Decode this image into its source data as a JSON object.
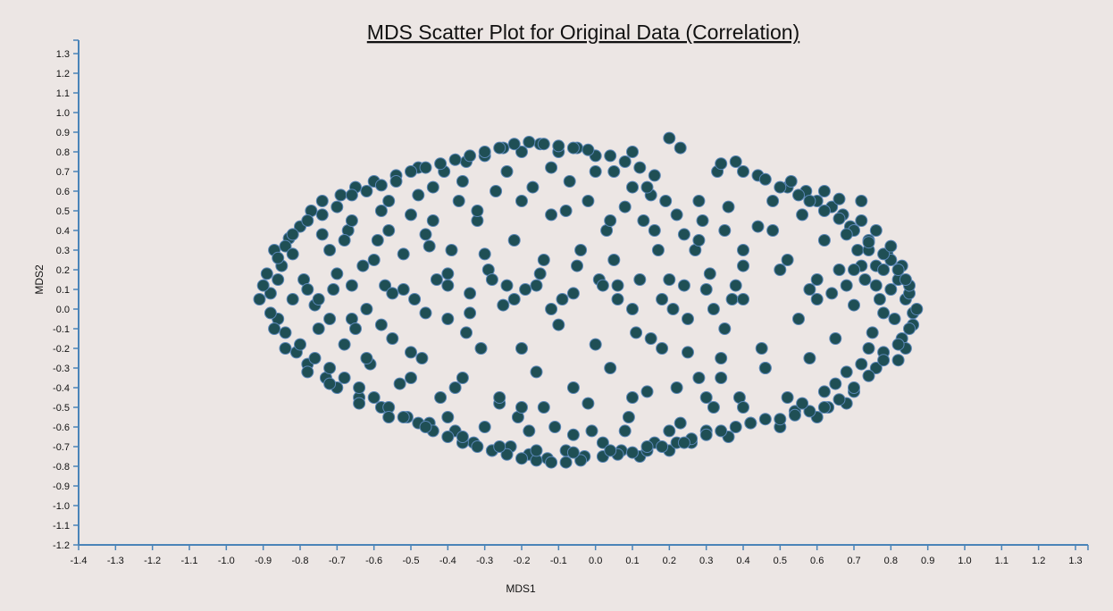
{
  "chart_data": {
    "type": "scatter",
    "title": "MDS Scatter Plot for Original Data (Correlation)",
    "xlabel": "MDS1",
    "ylabel": "MDS2",
    "xlim": [
      -1.4,
      1.3
    ],
    "ylim": [
      -1.2,
      1.3
    ],
    "x_ticks": [
      "-1.4",
      "-1.3",
      "-1.2",
      "-1.1",
      "-1.0",
      "-0.9",
      "-0.8",
      "-0.7",
      "-0.6",
      "-0.5",
      "-0.4",
      "-0.3",
      "-0.2",
      "-0.1",
      "0.0",
      "0.1",
      "0.2",
      "0.3",
      "0.4",
      "0.5",
      "0.6",
      "0.7",
      "0.8",
      "0.9",
      "1.0",
      "1.1",
      "1.2",
      "1.3"
    ],
    "y_ticks": [
      "1.3",
      "1.2",
      "1.1",
      "1.0",
      "0.9",
      "0.8",
      "0.7",
      "0.6",
      "0.5",
      "0.4",
      "0.3",
      "0.2",
      "0.1",
      "0.0",
      "-0.1",
      "-0.2",
      "-0.3",
      "-0.4",
      "-0.5",
      "-0.6",
      "-0.7",
      "-0.8",
      "-0.9",
      "-1.0",
      "-1.1",
      "-1.2"
    ],
    "marker_color": "#1f4f55",
    "marker_edge_color": "#5a86b6",
    "axis_color": "#4a84b8",
    "grid": false,
    "points": [
      [
        -0.89,
        0.18
      ],
      [
        -0.88,
        0.08
      ],
      [
        -0.87,
        0.3
      ],
      [
        -0.86,
        -0.05
      ],
      [
        -0.85,
        0.22
      ],
      [
        -0.84,
        -0.12
      ],
      [
        -0.83,
        0.36
      ],
      [
        -0.82,
        0.05
      ],
      [
        -0.81,
        -0.22
      ],
      [
        -0.8,
        0.42
      ],
      [
        -0.79,
        0.15
      ],
      [
        -0.78,
        -0.28
      ],
      [
        -0.77,
        0.5
      ],
      [
        -0.76,
        0.02
      ],
      [
        -0.75,
        -0.1
      ],
      [
        -0.74,
        0.55
      ],
      [
        -0.73,
        -0.35
      ],
      [
        -0.72,
        0.3
      ],
      [
        -0.71,
        0.1
      ],
      [
        -0.7,
        -0.4
      ],
      [
        -0.69,
        0.58
      ],
      [
        -0.68,
        -0.18
      ],
      [
        -0.67,
        0.4
      ],
      [
        -0.66,
        -0.05
      ],
      [
        -0.65,
        0.62
      ],
      [
        -0.64,
        -0.45
      ],
      [
        -0.63,
        0.22
      ],
      [
        -0.62,
        0.0
      ],
      [
        -0.61,
        -0.28
      ],
      [
        -0.6,
        0.65
      ],
      [
        -0.59,
        0.35
      ],
      [
        -0.58,
        -0.5
      ],
      [
        -0.57,
        0.12
      ],
      [
        -0.56,
        0.55
      ],
      [
        -0.55,
        -0.15
      ],
      [
        -0.54,
        0.68
      ],
      [
        -0.53,
        -0.38
      ],
      [
        -0.52,
        0.28
      ],
      [
        -0.51,
        -0.55
      ],
      [
        -0.5,
        0.48
      ],
      [
        -0.49,
        0.05
      ],
      [
        -0.48,
        0.72
      ],
      [
        -0.47,
        -0.25
      ],
      [
        -0.46,
        0.38
      ],
      [
        -0.45,
        -0.58
      ],
      [
        -0.44,
        0.62
      ],
      [
        -0.43,
        0.15
      ],
      [
        -0.42,
        -0.45
      ],
      [
        -0.41,
        0.7
      ],
      [
        -0.4,
        -0.05
      ],
      [
        -0.39,
        0.3
      ],
      [
        -0.38,
        -0.62
      ],
      [
        -0.37,
        0.55
      ],
      [
        -0.36,
        -0.35
      ],
      [
        -0.35,
        0.75
      ],
      [
        -0.34,
        0.08
      ],
      [
        -0.33,
        -0.68
      ],
      [
        -0.32,
        0.45
      ],
      [
        -0.31,
        -0.2
      ],
      [
        -0.3,
        0.78
      ],
      [
        -0.29,
        0.2
      ],
      [
        -0.28,
        -0.72
      ],
      [
        -0.27,
        0.6
      ],
      [
        -0.26,
        -0.48
      ],
      [
        -0.25,
        0.82
      ],
      [
        -0.24,
        0.12
      ],
      [
        -0.23,
        -0.7
      ],
      [
        -0.22,
        0.35
      ],
      [
        -0.21,
        -0.55
      ],
      [
        -0.2,
        0.8
      ],
      [
        -0.19,
        0.1
      ],
      [
        -0.18,
        -0.74
      ],
      [
        -0.17,
        0.62
      ],
      [
        -0.16,
        -0.32
      ],
      [
        -0.15,
        0.84
      ],
      [
        -0.14,
        0.25
      ],
      [
        -0.13,
        -0.76
      ],
      [
        -0.12,
        0.48
      ],
      [
        -0.11,
        -0.6
      ],
      [
        -0.1,
        0.8
      ],
      [
        -0.09,
        0.05
      ],
      [
        -0.08,
        -0.72
      ],
      [
        -0.07,
        0.65
      ],
      [
        -0.06,
        -0.4
      ],
      [
        -0.05,
        0.82
      ],
      [
        -0.04,
        0.3
      ],
      [
        -0.03,
        -0.75
      ],
      [
        -0.02,
        0.55
      ],
      [
        -0.01,
        -0.62
      ],
      [
        0.0,
        0.78
      ],
      [
        0.01,
        0.15
      ],
      [
        0.02,
        -0.68
      ],
      [
        0.03,
        0.4
      ],
      [
        0.04,
        -0.3
      ],
      [
        0.05,
        0.7
      ],
      [
        0.06,
        0.12
      ],
      [
        0.07,
        -0.72
      ],
      [
        0.08,
        0.52
      ],
      [
        0.09,
        -0.55
      ],
      [
        0.1,
        0.62
      ],
      [
        0.11,
        -0.12
      ],
      [
        0.12,
        -0.75
      ],
      [
        0.13,
        0.45
      ],
      [
        0.14,
        -0.42
      ],
      [
        0.15,
        0.58
      ],
      [
        0.16,
        -0.68
      ],
      [
        0.17,
        0.3
      ],
      [
        0.18,
        -0.2
      ],
      [
        0.19,
        0.55
      ],
      [
        0.2,
        -0.72
      ],
      [
        0.21,
        0.0
      ],
      [
        0.22,
        0.48
      ],
      [
        0.23,
        -0.58
      ],
      [
        0.24,
        0.38
      ],
      [
        0.25,
        -0.05
      ],
      [
        0.26,
        -0.68
      ],
      [
        0.27,
        0.3
      ],
      [
        0.28,
        -0.35
      ],
      [
        0.29,
        0.45
      ],
      [
        0.3,
        -0.62
      ],
      [
        0.31,
        0.18
      ],
      [
        0.32,
        -0.5
      ],
      [
        0.33,
        0.7
      ],
      [
        0.34,
        -0.25
      ],
      [
        0.35,
        0.4
      ],
      [
        0.36,
        -0.65
      ],
      [
        0.37,
        0.05
      ],
      [
        0.38,
        0.75
      ],
      [
        0.39,
        -0.45
      ],
      [
        0.4,
        0.22
      ],
      [
        0.42,
        -0.58
      ],
      [
        0.44,
        0.68
      ],
      [
        0.46,
        -0.3
      ],
      [
        0.48,
        0.55
      ],
      [
        0.5,
        -0.6
      ],
      [
        0.52,
        0.62
      ],
      [
        0.54,
        -0.52
      ],
      [
        0.56,
        0.48
      ],
      [
        0.58,
        0.1
      ],
      [
        0.6,
        -0.55
      ],
      [
        0.62,
        0.35
      ],
      [
        0.64,
        0.52
      ],
      [
        0.65,
        -0.38
      ],
      [
        0.66,
        0.2
      ],
      [
        0.68,
        -0.48
      ],
      [
        0.69,
        0.42
      ],
      [
        0.7,
        0.02
      ],
      [
        0.71,
        0.3
      ],
      [
        0.72,
        -0.28
      ],
      [
        0.73,
        0.15
      ],
      [
        0.74,
        0.35
      ],
      [
        0.75,
        -0.12
      ],
      [
        0.76,
        0.22
      ],
      [
        0.77,
        0.05
      ],
      [
        0.78,
        -0.22
      ],
      [
        0.79,
        0.28
      ],
      [
        0.8,
        0.1
      ],
      [
        0.81,
        -0.05
      ],
      [
        0.82,
        0.15
      ],
      [
        0.83,
        -0.15
      ],
      [
        0.84,
        0.05
      ],
      [
        0.85,
        0.08
      ],
      [
        0.86,
        -0.02
      ],
      [
        0.87,
        0.0
      ],
      [
        0.86,
        -0.08
      ],
      [
        0.85,
        0.12
      ],
      [
        0.84,
        -0.2
      ],
      [
        0.83,
        0.22
      ],
      [
        0.82,
        -0.26
      ],
      [
        0.8,
        0.25
      ],
      [
        0.78,
        0.2
      ],
      [
        0.76,
        -0.3
      ],
      [
        0.74,
        0.3
      ],
      [
        0.72,
        0.45
      ],
      [
        0.7,
        -0.42
      ],
      [
        0.67,
        0.48
      ],
      [
        0.63,
        -0.5
      ],
      [
        0.6,
        0.55
      ],
      [
        0.57,
        0.6
      ],
      [
        0.53,
        0.65
      ],
      [
        0.2,
        0.87
      ],
      [
        0.23,
        0.82
      ],
      [
        -0.9,
        0.12
      ],
      [
        -0.91,
        0.05
      ],
      [
        -0.88,
        -0.02
      ],
      [
        -0.86,
        0.26
      ],
      [
        -0.84,
        0.32
      ],
      [
        -0.82,
        0.38
      ],
      [
        -0.8,
        -0.18
      ],
      [
        -0.78,
        0.45
      ],
      [
        -0.76,
        -0.25
      ],
      [
        -0.74,
        0.48
      ],
      [
        -0.72,
        -0.3
      ],
      [
        -0.7,
        0.52
      ],
      [
        -0.68,
        -0.35
      ],
      [
        -0.66,
        0.58
      ],
      [
        -0.64,
        -0.4
      ],
      [
        -0.62,
        0.6
      ],
      [
        -0.6,
        -0.45
      ],
      [
        -0.58,
        0.63
      ],
      [
        -0.56,
        -0.5
      ],
      [
        -0.54,
        0.65
      ],
      [
        -0.52,
        -0.55
      ],
      [
        -0.5,
        0.7
      ],
      [
        -0.48,
        -0.58
      ],
      [
        -0.46,
        0.72
      ],
      [
        -0.44,
        -0.62
      ],
      [
        -0.42,
        0.74
      ],
      [
        -0.4,
        -0.65
      ],
      [
        -0.38,
        0.76
      ],
      [
        -0.36,
        -0.68
      ],
      [
        -0.34,
        0.78
      ],
      [
        -0.32,
        -0.7
      ],
      [
        -0.3,
        0.8
      ],
      [
        -0.28,
        -0.72
      ],
      [
        -0.26,
        0.82
      ],
      [
        -0.24,
        -0.74
      ],
      [
        -0.22,
        0.84
      ],
      [
        -0.2,
        -0.76
      ],
      [
        -0.18,
        0.85
      ],
      [
        -0.16,
        -0.77
      ],
      [
        -0.14,
        0.84
      ],
      [
        -0.12,
        -0.78
      ],
      [
        -0.1,
        0.83
      ],
      [
        -0.08,
        -0.78
      ],
      [
        -0.06,
        0.82
      ],
      [
        -0.04,
        -0.77
      ],
      [
        -0.02,
        0.81
      ],
      [
        0.02,
        -0.75
      ],
      [
        0.04,
        0.78
      ],
      [
        0.06,
        -0.74
      ],
      [
        0.08,
        0.75
      ],
      [
        0.1,
        -0.73
      ],
      [
        0.12,
        0.72
      ],
      [
        0.14,
        -0.72
      ],
      [
        0.16,
        0.68
      ],
      [
        0.18,
        -0.7
      ],
      [
        0.22,
        -0.68
      ],
      [
        0.26,
        -0.66
      ],
      [
        0.3,
        -0.64
      ],
      [
        0.34,
        -0.62
      ],
      [
        0.38,
        -0.6
      ],
      [
        0.42,
        -0.58
      ],
      [
        0.46,
        -0.56
      ],
      [
        0.5,
        -0.56
      ],
      [
        0.54,
        -0.54
      ],
      [
        0.58,
        -0.52
      ],
      [
        0.62,
        -0.5
      ],
      [
        0.66,
        -0.46
      ],
      [
        0.7,
        -0.4
      ],
      [
        0.74,
        -0.34
      ],
      [
        0.78,
        -0.26
      ],
      [
        0.82,
        -0.18
      ],
      [
        0.85,
        -0.1
      ],
      [
        0.34,
        0.74
      ],
      [
        0.4,
        0.7
      ],
      [
        0.46,
        0.66
      ],
      [
        0.5,
        0.62
      ],
      [
        0.55,
        0.58
      ],
      [
        0.58,
        0.55
      ],
      [
        0.62,
        0.5
      ],
      [
        0.66,
        0.46
      ],
      [
        0.7,
        0.4
      ],
      [
        0.74,
        0.34
      ],
      [
        0.78,
        0.28
      ],
      [
        0.82,
        0.2
      ],
      [
        0.84,
        0.15
      ],
      [
        -0.75,
        0.05
      ],
      [
        -0.7,
        0.18
      ],
      [
        -0.65,
        -0.1
      ],
      [
        -0.6,
        0.25
      ],
      [
        -0.55,
        0.08
      ],
      [
        -0.5,
        -0.22
      ],
      [
        -0.45,
        0.32
      ],
      [
        -0.4,
        0.18
      ],
      [
        -0.35,
        -0.12
      ],
      [
        -0.3,
        0.28
      ],
      [
        -0.25,
        0.02
      ],
      [
        -0.2,
        -0.2
      ],
      [
        -0.15,
        0.18
      ],
      [
        -0.1,
        -0.08
      ],
      [
        -0.05,
        0.22
      ],
      [
        0.0,
        -0.18
      ],
      [
        0.05,
        0.25
      ],
      [
        0.1,
        0.0
      ],
      [
        0.15,
        -0.15
      ],
      [
        0.2,
        0.15
      ],
      [
        0.25,
        -0.22
      ],
      [
        0.3,
        0.1
      ],
      [
        0.35,
        -0.1
      ],
      [
        0.4,
        0.05
      ],
      [
        0.45,
        -0.2
      ],
      [
        0.5,
        0.2
      ],
      [
        0.55,
        -0.05
      ],
      [
        0.6,
        0.15
      ],
      [
        0.65,
        -0.15
      ],
      [
        -0.68,
        0.35
      ],
      [
        -0.62,
        -0.25
      ],
      [
        -0.56,
        0.4
      ],
      [
        -0.5,
        -0.35
      ],
      [
        -0.44,
        0.45
      ],
      [
        -0.38,
        -0.4
      ],
      [
        -0.32,
        0.5
      ],
      [
        -0.26,
        -0.45
      ],
      [
        -0.2,
        0.55
      ],
      [
        -0.14,
        -0.5
      ],
      [
        -0.08,
        0.5
      ],
      [
        -0.02,
        -0.48
      ],
      [
        0.04,
        0.45
      ],
      [
        0.1,
        -0.45
      ],
      [
        0.16,
        0.4
      ],
      [
        0.22,
        -0.4
      ],
      [
        0.28,
        0.35
      ],
      [
        0.34,
        -0.35
      ],
      [
        0.4,
        0.3
      ],
      [
        0.46,
        -0.3
      ],
      [
        0.52,
        0.25
      ],
      [
        0.58,
        -0.25
      ],
      [
        -0.78,
        0.1
      ],
      [
        -0.72,
        -0.05
      ],
      [
        -0.66,
        0.12
      ],
      [
        -0.58,
        -0.08
      ],
      [
        -0.52,
        0.1
      ],
      [
        -0.46,
        -0.02
      ],
      [
        -0.4,
        0.12
      ],
      [
        -0.34,
        -0.02
      ],
      [
        -0.28,
        0.15
      ],
      [
        -0.22,
        0.05
      ],
      [
        -0.16,
        0.12
      ],
      [
        -0.12,
        0.0
      ],
      [
        -0.06,
        0.08
      ],
      [
        0.02,
        0.12
      ],
      [
        0.06,
        0.05
      ],
      [
        0.12,
        0.15
      ],
      [
        0.18,
        0.05
      ],
      [
        0.24,
        0.12
      ],
      [
        0.32,
        0.0
      ],
      [
        0.38,
        0.12
      ],
      [
        -0.3,
        -0.6
      ],
      [
        -0.18,
        -0.62
      ],
      [
        -0.06,
        -0.64
      ],
      [
        0.08,
        -0.62
      ],
      [
        0.2,
        -0.62
      ],
      [
        -0.4,
        -0.55
      ],
      [
        -0.24,
        0.7
      ],
      [
        -0.12,
        0.72
      ],
      [
        0.0,
        0.7
      ],
      [
        0.14,
        0.62
      ],
      [
        0.28,
        0.55
      ],
      [
        -0.36,
        0.65
      ],
      [
        -0.48,
        0.58
      ],
      [
        -0.58,
        0.5
      ],
      [
        -0.66,
        0.45
      ],
      [
        -0.74,
        0.38
      ],
      [
        -0.82,
        0.28
      ],
      [
        -0.86,
        0.15
      ],
      [
        -0.87,
        -0.1
      ],
      [
        -0.84,
        -0.2
      ],
      [
        -0.78,
        -0.32
      ],
      [
        -0.72,
        -0.38
      ],
      [
        -0.64,
        -0.48
      ],
      [
        -0.56,
        -0.55
      ],
      [
        -0.46,
        -0.6
      ],
      [
        -0.36,
        -0.65
      ],
      [
        -0.26,
        -0.7
      ],
      [
        -0.16,
        -0.72
      ],
      [
        -0.06,
        -0.73
      ],
      [
        0.04,
        -0.72
      ],
      [
        0.14,
        -0.7
      ],
      [
        0.24,
        -0.68
      ],
      [
        0.68,
        0.38
      ],
      [
        0.72,
        0.22
      ],
      [
        0.76,
        0.12
      ],
      [
        0.78,
        -0.02
      ],
      [
        0.74,
        -0.2
      ],
      [
        0.68,
        -0.32
      ],
      [
        0.62,
        -0.42
      ],
      [
        0.56,
        -0.48
      ],
      [
        0.72,
        0.55
      ],
      [
        0.76,
        0.4
      ],
      [
        0.8,
        0.32
      ],
      [
        0.66,
        0.56
      ],
      [
        0.62,
        0.6
      ],
      [
        0.1,
        0.8
      ],
      [
        -0.2,
        -0.5
      ],
      [
        0.44,
        0.42
      ],
      [
        0.36,
        0.52
      ],
      [
        0.48,
        0.4
      ],
      [
        0.3,
        -0.45
      ],
      [
        0.4,
        -0.5
      ],
      [
        0.52,
        -0.45
      ],
      [
        0.6,
        0.05
      ],
      [
        0.64,
        0.08
      ],
      [
        0.68,
        0.12
      ],
      [
        0.7,
        0.2
      ]
    ]
  }
}
